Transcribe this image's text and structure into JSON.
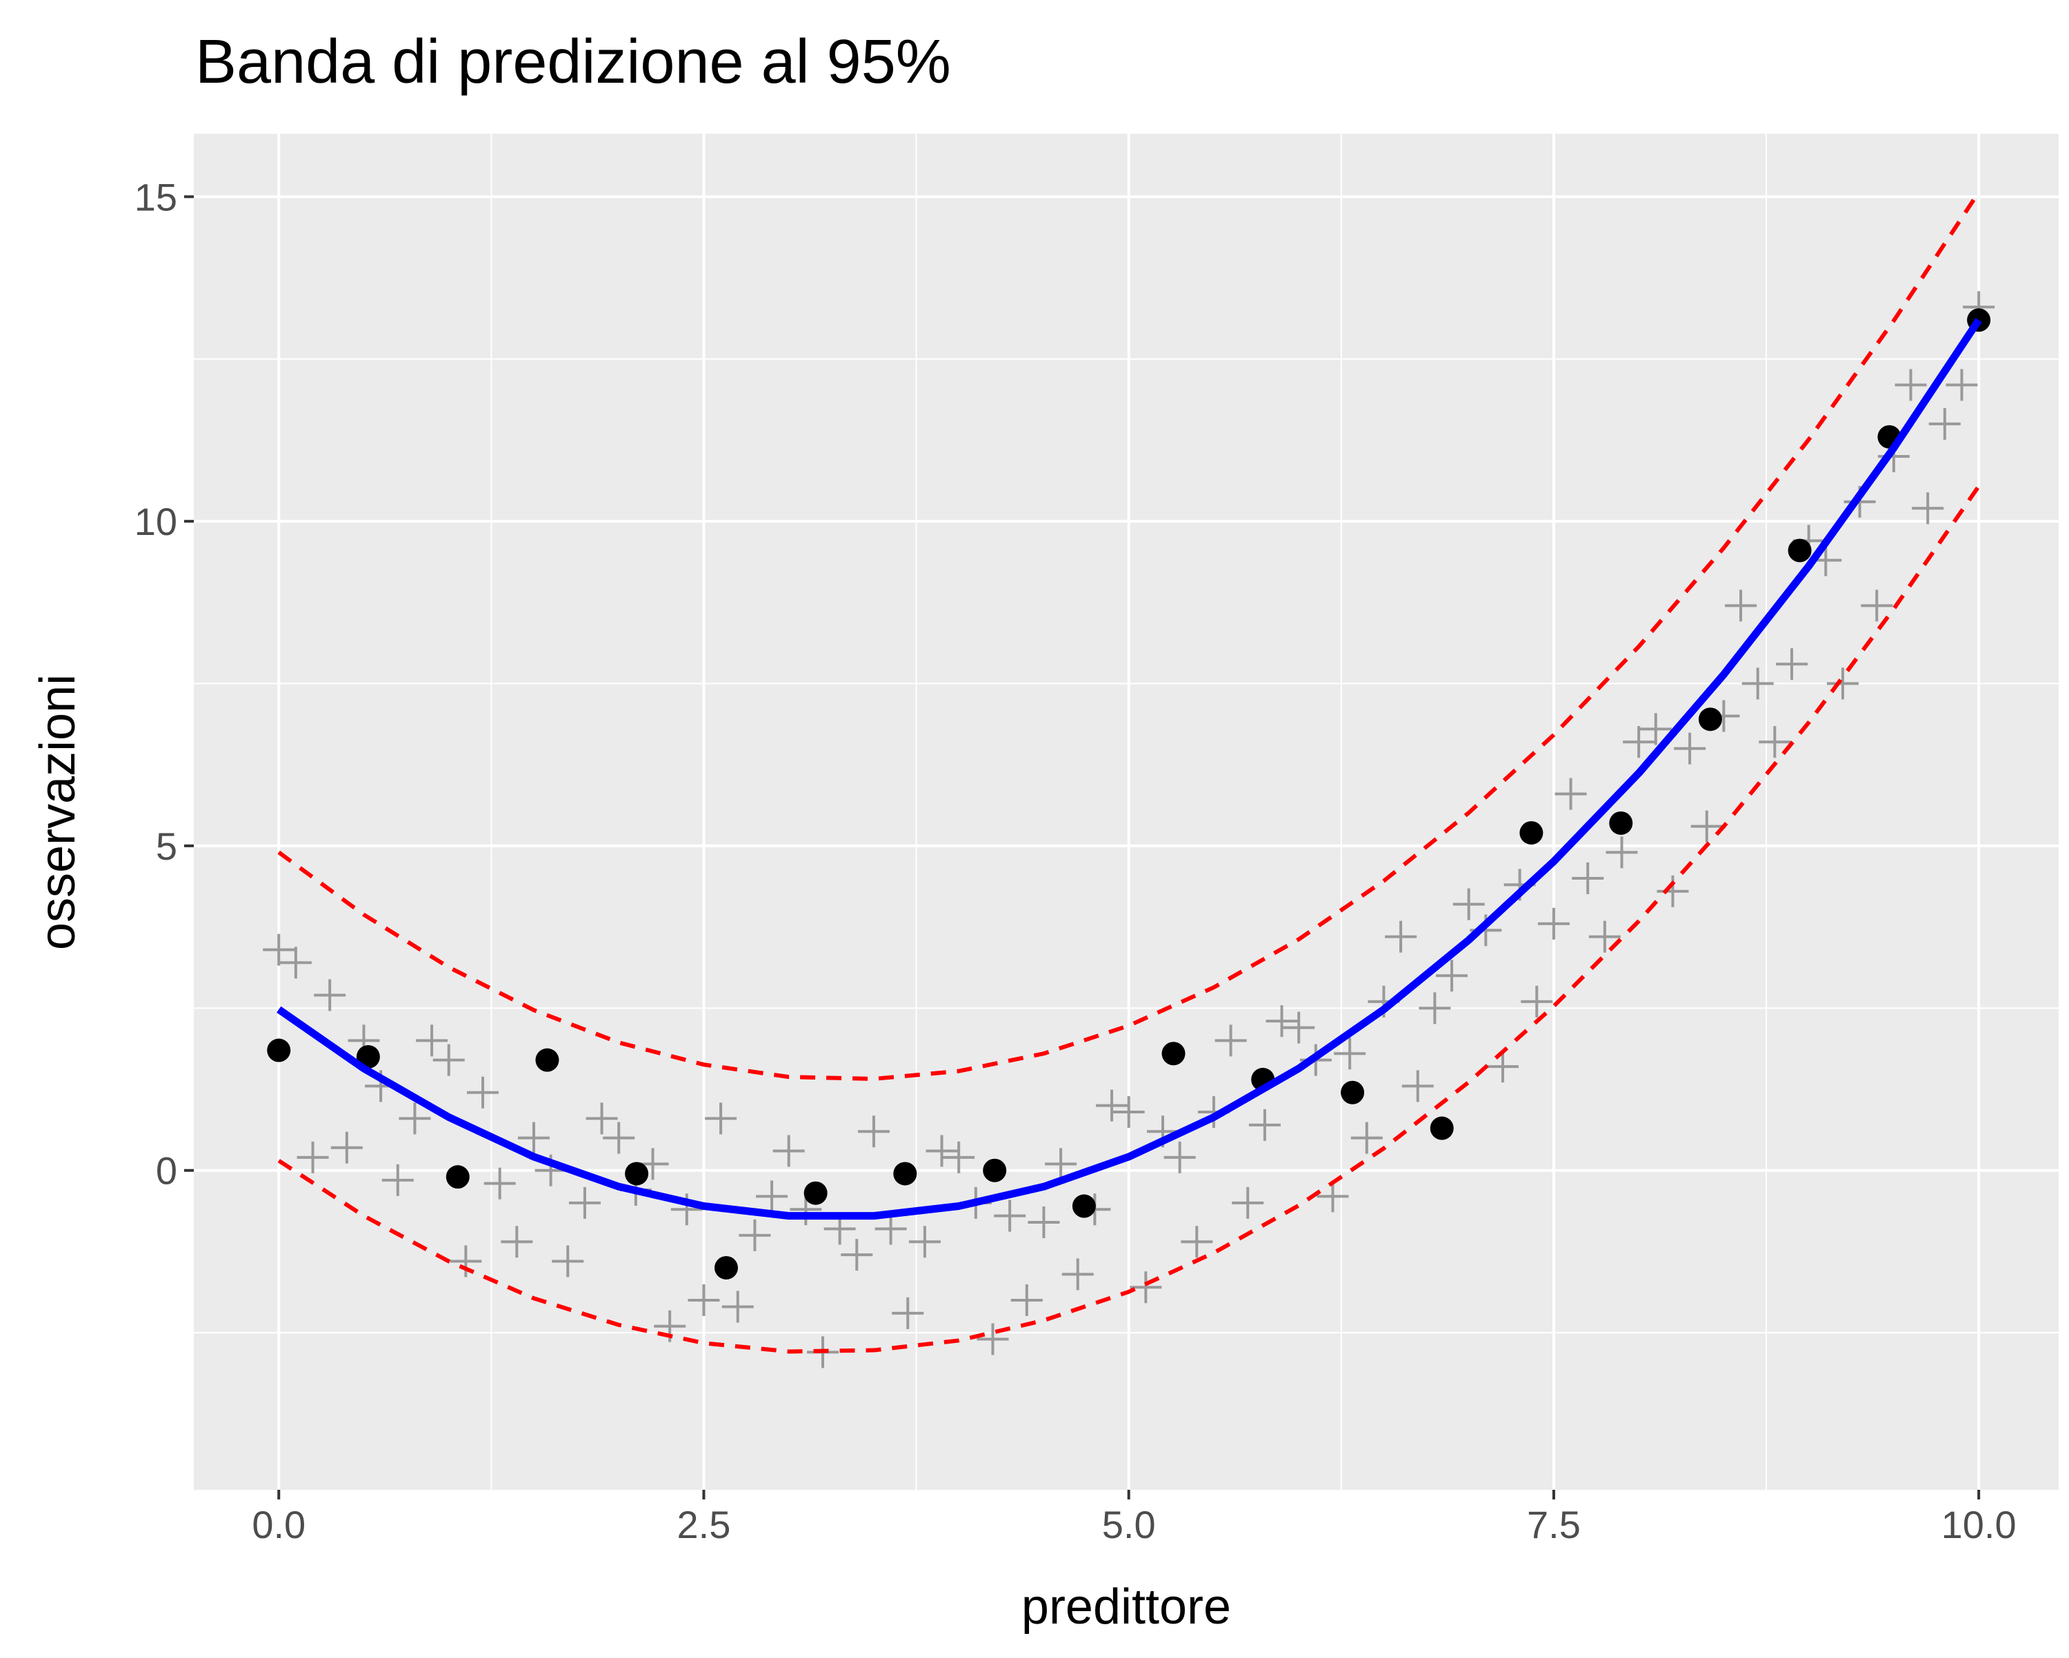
{
  "chart_data": {
    "type": "scatter",
    "title": "Banda di predizione al 95%",
    "x_label": "predittore",
    "y_label": "osservazioni",
    "xlim": [
      -0.5,
      10.47
    ],
    "ylim": [
      -4.92,
      15.97
    ],
    "xticks": [
      {
        "value": 0,
        "label": "0.0"
      },
      {
        "value": 2.5,
        "label": "2.5"
      },
      {
        "value": 5,
        "label": "5.0"
      },
      {
        "value": 7.5,
        "label": "7.5"
      },
      {
        "value": 10,
        "label": "10.0"
      }
    ],
    "yticks": [
      0,
      5,
      10,
      15
    ],
    "grid": true,
    "series": [
      {
        "kind": "scatter",
        "shape": "cross",
        "color": "#999999",
        "x": [
          0,
          0.1,
          0.2,
          0.3,
          0.4,
          0.5,
          0.6,
          0.7,
          0.8,
          0.9,
          1,
          1.1,
          1.2,
          1.3,
          1.4,
          1.5,
          1.6,
          1.7,
          1.8,
          1.9,
          2,
          2.1,
          2.2,
          2.3,
          2.4,
          2.5,
          2.6,
          2.7,
          2.8,
          2.9,
          3,
          3.1,
          3.2,
          3.3,
          3.4,
          3.5,
          3.6,
          3.7,
          3.8,
          3.9,
          4,
          4.1,
          4.2,
          4.3,
          4.4,
          4.5,
          4.6,
          4.7,
          4.8,
          4.9,
          5,
          5.1,
          5.2,
          5.3,
          5.4,
          5.5,
          5.6,
          5.7,
          5.8,
          5.9,
          6,
          6.1,
          6.2,
          6.3,
          6.4,
          6.5,
          6.6,
          6.7,
          6.8,
          6.9,
          7,
          7.1,
          7.2,
          7.3,
          7.4,
          7.5,
          7.6,
          7.7,
          7.8,
          7.9,
          8,
          8.1,
          8.2,
          8.3,
          8.4,
          8.5,
          8.6,
          8.7,
          8.8,
          8.9,
          9,
          9.1,
          9.2,
          9.3,
          9.4,
          9.5,
          9.6,
          9.7,
          9.8,
          9.9,
          10
        ],
        "values": [
          3.4,
          3.2,
          0.2,
          2.7,
          0.35,
          2.0,
          1.3,
          -0.15,
          0.8,
          2.0,
          1.7,
          -1.4,
          1.2,
          -0.2,
          -1.1,
          0.5,
          0.0,
          -1.4,
          -0.5,
          0.8,
          0.5,
          -0.3,
          0.1,
          -2.4,
          -0.6,
          -2.0,
          0.8,
          -2.1,
          -1.0,
          -0.4,
          0.3,
          -0.6,
          -2.8,
          -0.9,
          -1.3,
          0.6,
          -0.9,
          -2.2,
          -1.1,
          0.3,
          0.2,
          -0.5,
          -2.6,
          -0.7,
          -2.0,
          -0.8,
          0.1,
          -1.6,
          -0.6,
          1.0,
          0.9,
          -1.8,
          0.6,
          0.2,
          -1.1,
          0.9,
          2.0,
          -0.5,
          0.7,
          2.3,
          2.2,
          1.7,
          -0.4,
          1.8,
          0.5,
          2.6,
          3.6,
          1.3,
          2.5,
          3.0,
          4.1,
          3.7,
          1.6,
          4.4,
          2.6,
          3.8,
          5.8,
          4.5,
          3.6,
          4.9,
          6.6,
          6.8,
          4.3,
          6.5,
          5.3,
          7.0,
          8.7,
          7.5,
          6.6,
          7.8,
          9.7,
          9.4,
          7.5,
          10.3,
          8.7,
          11.0,
          12.1,
          10.2,
          11.5,
          12.1,
          13.3
        ]
      },
      {
        "kind": "scatter",
        "shape": "dot",
        "color": "#000000",
        "x": [
          0,
          0.526,
          1.053,
          1.579,
          2.105,
          2.632,
          3.158,
          3.684,
          4.211,
          4.737,
          5.263,
          5.789,
          6.316,
          6.842,
          7.368,
          7.895,
          8.421,
          8.947,
          9.474,
          10
        ],
        "values": [
          1.85,
          1.75,
          -0.1,
          1.7,
          -0.05,
          -1.5,
          -0.35,
          -0.05,
          0.0,
          -0.55,
          1.8,
          1.4,
          1.2,
          0.65,
          5.2,
          5.35,
          6.95,
          9.55,
          11.3,
          13.1
        ]
      },
      {
        "kind": "line",
        "dashed": false,
        "color": "#0000ff",
        "x": [
          0,
          0.5,
          1,
          1.5,
          2,
          2.5,
          3,
          3.5,
          4,
          4.5,
          5,
          5.5,
          6,
          6.5,
          7,
          7.5,
          8,
          8.5,
          9,
          9.5,
          10
        ],
        "values": [
          2.48,
          1.57,
          0.82,
          0.21,
          -0.25,
          -0.55,
          -0.7,
          -0.7,
          -0.55,
          -0.25,
          0.21,
          0.82,
          1.57,
          2.48,
          3.55,
          4.76,
          6.12,
          7.64,
          9.31,
          11.13,
          13.1
        ]
      },
      {
        "kind": "line",
        "dashed": true,
        "color": "#ff0000",
        "x": [
          0,
          0.5,
          1,
          1.5,
          2,
          2.5,
          3,
          3.5,
          4,
          4.5,
          5,
          5.5,
          6,
          6.5,
          7,
          7.5,
          8,
          8.5,
          9,
          9.5,
          10
        ],
        "values": [
          4.9,
          3.94,
          3.13,
          2.47,
          1.97,
          1.63,
          1.44,
          1.41,
          1.53,
          1.8,
          2.23,
          2.82,
          3.56,
          4.46,
          5.51,
          6.71,
          8.07,
          9.59,
          11.26,
          13.09,
          15.07
        ]
      },
      {
        "kind": "line",
        "dashed": true,
        "color": "#ff0000",
        "x": [
          0,
          0.5,
          1,
          1.5,
          2,
          2.5,
          3,
          3.5,
          4,
          4.5,
          5,
          5.5,
          6,
          6.5,
          7,
          7.5,
          8,
          8.5,
          9,
          9.5,
          10
        ],
        "values": [
          0.15,
          -0.7,
          -1.4,
          -1.97,
          -2.38,
          -2.66,
          -2.79,
          -2.77,
          -2.62,
          -2.31,
          -1.87,
          -1.27,
          -0.54,
          0.34,
          1.36,
          2.53,
          3.84,
          5.3,
          6.9,
          8.65,
          10.54
        ]
      }
    ]
  }
}
